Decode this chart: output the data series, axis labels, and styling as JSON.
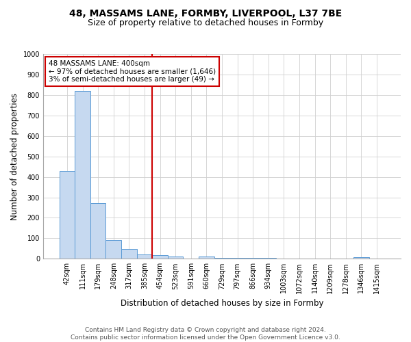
{
  "title": "48, MASSAMS LANE, FORMBY, LIVERPOOL, L37 7BE",
  "subtitle": "Size of property relative to detached houses in Formby",
  "xlabel": "Distribution of detached houses by size in Formby",
  "ylabel": "Number of detached properties",
  "footer": "Contains HM Land Registry data © Crown copyright and database right 2024.\nContains public sector information licensed under the Open Government Licence v3.0.",
  "bar_labels": [
    "42sqm",
    "111sqm",
    "179sqm",
    "248sqm",
    "317sqm",
    "385sqm",
    "454sqm",
    "523sqm",
    "591sqm",
    "660sqm",
    "729sqm",
    "797sqm",
    "866sqm",
    "934sqm",
    "1003sqm",
    "1072sqm",
    "1140sqm",
    "1209sqm",
    "1278sqm",
    "1346sqm",
    "1415sqm"
  ],
  "bar_values": [
    430,
    820,
    270,
    90,
    47,
    22,
    17,
    10,
    0,
    10,
    5,
    5,
    5,
    5,
    0,
    0,
    0,
    0,
    0,
    8,
    0
  ],
  "bar_color": "#c6d9f0",
  "bar_edge_color": "#5b9bd5",
  "grid_color": "#d0d0d0",
  "vline_color": "#cc0000",
  "vline_x": 5.5,
  "annotation_text": "48 MASSAMS LANE: 400sqm\n← 97% of detached houses are smaller (1,646)\n3% of semi-detached houses are larger (49) →",
  "annotation_box_color": "#cc0000",
  "ylim": [
    0,
    1000
  ],
  "title_fontsize": 10,
  "subtitle_fontsize": 9,
  "axis_label_fontsize": 8.5,
  "tick_fontsize": 7,
  "annotation_fontsize": 7.5,
  "footer_fontsize": 6.5
}
